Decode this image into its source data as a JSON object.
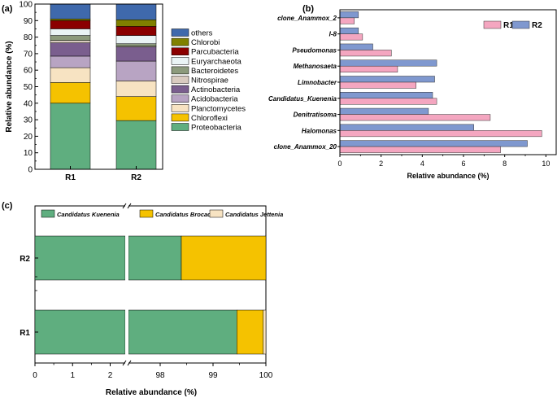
{
  "chart_data": [
    {
      "panel": "(a)",
      "type": "bar",
      "stacked": true,
      "categories": [
        "R1",
        "R2"
      ],
      "ylabel": "Relative abundance (%)",
      "xlabel": "",
      "ylim": [
        0,
        100
      ],
      "yticks": [
        0,
        10,
        20,
        30,
        40,
        50,
        60,
        70,
        80,
        90,
        100
      ],
      "legend_location": "right",
      "series": [
        {
          "name": "Proteobacteria",
          "color": "#5fae7f",
          "values": [
            40.0,
            29.5
          ]
        },
        {
          "name": "Chloroflexi",
          "color": "#f5c200",
          "values": [
            12.5,
            14.5
          ]
        },
        {
          "name": "Planctomycetes",
          "color": "#f7e3c2",
          "values": [
            9.0,
            9.5
          ]
        },
        {
          "name": "Acidobacteria",
          "color": "#b8a4c3",
          "values": [
            7.0,
            12.0
          ]
        },
        {
          "name": "Actinobacteria",
          "color": "#7a5e8e",
          "values": [
            8.0,
            8.5
          ]
        },
        {
          "name": "Nitrospirae",
          "color": "#d9cbc0",
          "values": [
            1.5,
            0.5
          ]
        },
        {
          "name": "Bacteroidetes",
          "color": "#8c9a7c",
          "values": [
            3.0,
            1.5
          ]
        },
        {
          "name": "Euryarchaeota",
          "color": "#eaf4f5",
          "values": [
            4.0,
            5.0
          ]
        },
        {
          "name": "Parcubacteria",
          "color": "#8b0000",
          "values": [
            5.0,
            5.5
          ]
        },
        {
          "name": "Chlorobi",
          "color": "#808000",
          "values": [
            1.0,
            4.0
          ]
        },
        {
          "name": "others",
          "color": "#3f69ac",
          "values": [
            9.0,
            9.5
          ]
        }
      ]
    },
    {
      "panel": "(b)",
      "type": "bar",
      "orientation": "horizontal",
      "categories": [
        "clone_Anammox_2",
        "I-8",
        "Pseudomonas",
        "Methanosaeta",
        "Limnobacter",
        "Candidatus_Kuenenia",
        "Denitratisoma",
        "Halomonas",
        "clone_Anammox_20"
      ],
      "xlabel": "Relative abundance (%)",
      "ylabel": "",
      "xlim": [
        0,
        10.5
      ],
      "xticks": [
        0,
        2,
        4,
        6,
        8,
        10
      ],
      "legend_location": "top-right",
      "series": [
        {
          "name": "R1",
          "color": "#f4a6c0",
          "values": [
            0.7,
            1.1,
            2.5,
            2.8,
            3.7,
            4.7,
            7.3,
            9.8,
            7.8
          ]
        },
        {
          "name": "R2",
          "color": "#7f98cf",
          "values": [
            0.9,
            0.9,
            1.6,
            4.7,
            4.6,
            4.5,
            4.3,
            6.5,
            9.1
          ]
        }
      ]
    },
    {
      "panel": "(c)",
      "type": "bar",
      "orientation": "horizontal",
      "stacked": true,
      "broken_axis": true,
      "categories": [
        "R2",
        "R1"
      ],
      "xlabel": "Relative abundance (%)",
      "ylabel": "",
      "xticks": [
        0,
        1,
        2,
        98,
        99,
        100
      ],
      "legend_location": "top",
      "series": [
        {
          "name": "Candidatus Kuenenia",
          "color": "#5fae7f",
          "values": [
            98.4,
            99.45
          ]
        },
        {
          "name": "Candidatus Brocadia",
          "color": "#f5c200",
          "values": [
            1.6,
            0.5
          ]
        },
        {
          "name": "Candidatus Jettenia",
          "color": "#f7e3c2",
          "values": [
            0.0,
            0.05
          ]
        }
      ]
    }
  ]
}
